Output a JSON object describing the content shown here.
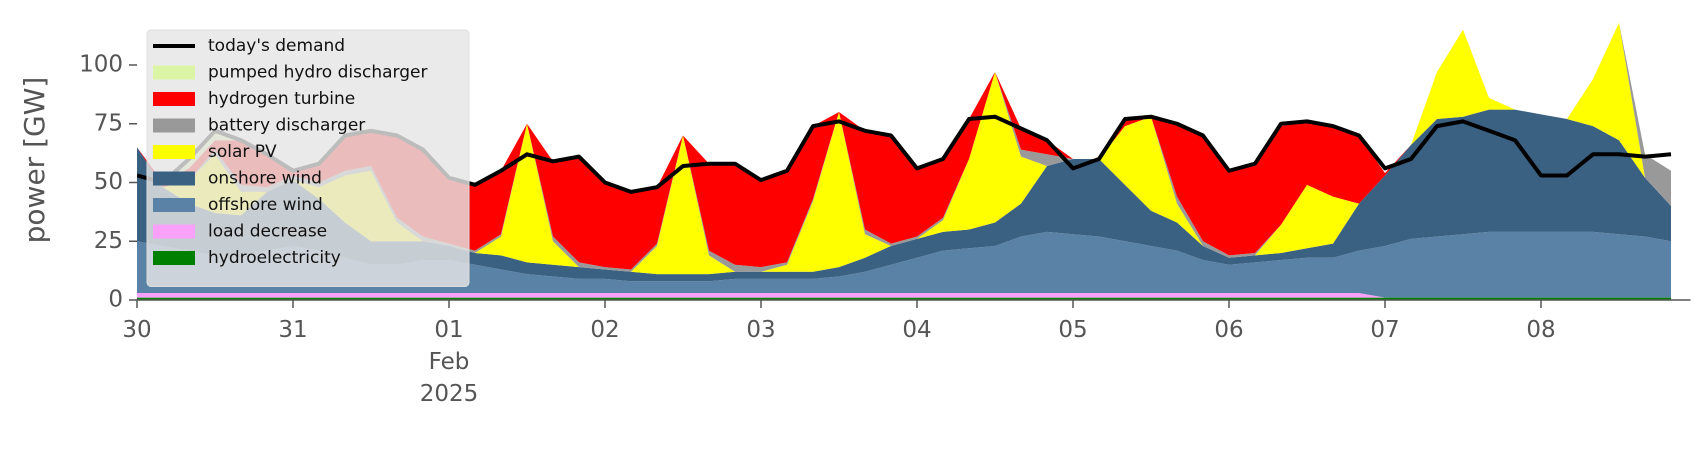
{
  "chart_data": {
    "type": "area",
    "stacked": true,
    "ylabel": "power [GW]",
    "x": [
      0,
      4,
      8,
      12,
      16,
      20,
      24,
      28,
      32,
      36,
      40,
      44,
      48,
      52,
      56,
      60,
      64,
      68,
      72,
      76,
      80,
      84,
      88,
      92,
      96,
      100,
      104,
      108,
      112,
      116,
      120,
      124,
      128,
      132,
      136,
      140,
      144,
      148,
      152,
      156,
      160,
      164,
      168,
      172,
      176,
      180,
      184,
      188,
      192,
      196,
      200,
      204,
      208,
      212,
      216,
      220,
      224,
      228,
      232,
      236
    ],
    "xlim": [
      0,
      239
    ],
    "xticks": [
      {
        "value": 0,
        "label": "30"
      },
      {
        "value": 24,
        "label": "31"
      },
      {
        "value": 48,
        "label": "01\nFeb\n2025"
      },
      {
        "value": 72,
        "label": "02"
      },
      {
        "value": 96,
        "label": "03"
      },
      {
        "value": 120,
        "label": "04"
      },
      {
        "value": 144,
        "label": "05"
      },
      {
        "value": 168,
        "label": "06"
      },
      {
        "value": 192,
        "label": "07"
      },
      {
        "value": 216,
        "label": "08"
      }
    ],
    "ylim": [
      0,
      120
    ],
    "yticks": [
      0,
      25,
      50,
      75,
      100
    ],
    "legend": "upper left",
    "series": [
      {
        "name": "today's demand",
        "type": "line",
        "color": "#000000",
        "values": [
          53,
          50,
          60,
          72,
          68,
          62,
          55,
          58,
          70,
          72,
          70,
          64,
          52,
          49,
          55,
          62,
          59,
          61,
          50,
          46,
          48,
          57,
          58,
          58,
          51,
          55,
          74,
          76,
          72,
          70,
          56,
          60,
          77,
          78,
          73,
          68,
          56,
          60,
          77,
          78,
          75,
          70,
          55,
          58,
          75,
          76,
          74,
          70,
          56,
          60,
          74,
          76,
          72,
          68,
          53,
          53,
          62,
          62,
          61,
          62
        ]
      },
      {
        "name": "pumped hydro discharger",
        "color": "#dcf5a5",
        "values": [
          0,
          0,
          4,
          4,
          0,
          0,
          0,
          0,
          0,
          0,
          0,
          0,
          0,
          0,
          0,
          0,
          0,
          0,
          0,
          0,
          0,
          0,
          0,
          0,
          0,
          0,
          0,
          0,
          0,
          0,
          0,
          0,
          0,
          0,
          0,
          0,
          0,
          0,
          0,
          0,
          0,
          0,
          0,
          0,
          0,
          0,
          0,
          0,
          0,
          0,
          0,
          0,
          0,
          0,
          0,
          0,
          0,
          0,
          0,
          0
        ]
      },
      {
        "name": "hydrogen turbine",
        "color": "#ff0000",
        "values": [
          0,
          2,
          5,
          4,
          19,
          14,
          2,
          8,
          15,
          15,
          35,
          37,
          28,
          28,
          27,
          0,
          32,
          45,
          36,
          33,
          24,
          0,
          37,
          43,
          37,
          39,
          31,
          0,
          42,
          46,
          29,
          25,
          17,
          0,
          9,
          6,
          0,
          0,
          3,
          0,
          31,
          45,
          36,
          38,
          42,
          27,
          30,
          29,
          1,
          0,
          0,
          0,
          0,
          0,
          0,
          0,
          0,
          0,
          0,
          0
        ]
      },
      {
        "name": "battery discharger",
        "color": "#999999",
        "values": [
          0,
          0,
          0,
          2,
          3,
          2,
          2,
          2,
          2,
          2,
          2,
          2,
          1,
          1,
          1,
          0,
          2,
          2,
          1,
          1,
          1,
          0,
          2,
          3,
          2,
          1,
          1,
          0,
          2,
          1,
          1,
          1,
          0,
          0,
          3,
          5,
          0,
          0,
          0,
          0,
          3,
          2,
          1,
          1,
          0,
          0,
          0,
          0,
          0,
          0,
          0,
          0,
          0,
          0,
          0,
          0,
          0,
          0,
          10,
          15
        ]
      },
      {
        "name": "solar PV",
        "color": "#ffff00",
        "values": [
          0,
          0,
          10,
          25,
          10,
          0,
          0,
          5,
          20,
          30,
          8,
          0,
          0,
          0,
          8,
          59,
          10,
          0,
          0,
          0,
          12,
          59,
          8,
          0,
          0,
          3,
          30,
          66,
          10,
          0,
          0,
          5,
          30,
          64,
          20,
          0,
          0,
          0,
          25,
          40,
          8,
          0,
          0,
          0,
          12,
          27,
          20,
          0,
          0,
          0,
          20,
          37,
          5,
          0,
          0,
          0,
          20,
          50,
          0,
          0
        ]
      },
      {
        "name": "onshore wind",
        "color": "#3b6182",
        "values": [
          40,
          25,
          20,
          18,
          18,
          25,
          28,
          22,
          15,
          10,
          10,
          8,
          6,
          5,
          6,
          5,
          5,
          5,
          4,
          4,
          3,
          3,
          3,
          3,
          3,
          3,
          3,
          4,
          6,
          8,
          8,
          8,
          8,
          10,
          14,
          28,
          32,
          33,
          24,
          15,
          12,
          6,
          3,
          3,
          3,
          4,
          6,
          20,
          30,
          40,
          50,
          50,
          52,
          52,
          50,
          48,
          45,
          40,
          25,
          15
        ]
      },
      {
        "name": "offshore wind",
        "color": "#5a82a6",
        "values": [
          22,
          20,
          18,
          16,
          15,
          18,
          20,
          18,
          15,
          12,
          12,
          14,
          14,
          12,
          10,
          8,
          7,
          6,
          6,
          5,
          5,
          5,
          5,
          6,
          6,
          6,
          6,
          7,
          9,
          12,
          15,
          18,
          19,
          20,
          24,
          26,
          25,
          24,
          22,
          20,
          18,
          14,
          12,
          13,
          14,
          15,
          15,
          18,
          22,
          25,
          26,
          27,
          28,
          28,
          28,
          28,
          28,
          27,
          26,
          24
        ]
      },
      {
        "name": "load decrease",
        "color": "#f9a0f9",
        "values": [
          2,
          2,
          2,
          2,
          2,
          2,
          2,
          2,
          2,
          2,
          2,
          2,
          2,
          2,
          2,
          2,
          2,
          2,
          2,
          2,
          2,
          2,
          2,
          2,
          2,
          2,
          2,
          2,
          2,
          2,
          2,
          2,
          2,
          2,
          2,
          2,
          2,
          2,
          2,
          2,
          2,
          2,
          2,
          2,
          2,
          2,
          2,
          2,
          0,
          0,
          0,
          0,
          0,
          0,
          0,
          0,
          0,
          0,
          0,
          0
        ]
      },
      {
        "name": "hydroelectricity",
        "color": "#008000",
        "values": [
          1,
          1,
          1,
          1,
          1,
          1,
          1,
          1,
          1,
          1,
          1,
          1,
          1,
          1,
          1,
          1,
          1,
          1,
          1,
          1,
          1,
          1,
          1,
          1,
          1,
          1,
          1,
          1,
          1,
          1,
          1,
          1,
          1,
          1,
          1,
          1,
          1,
          1,
          1,
          1,
          1,
          1,
          1,
          1,
          1,
          1,
          1,
          1,
          1,
          1,
          1,
          1,
          1,
          1,
          1,
          1,
          1,
          1,
          1,
          1
        ]
      }
    ]
  }
}
